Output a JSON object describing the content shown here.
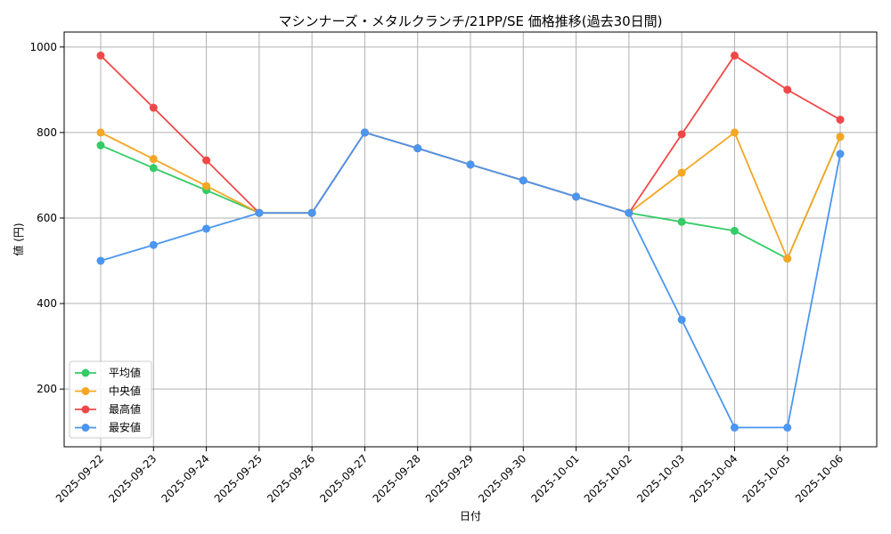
{
  "chart_data": {
    "type": "line",
    "title": "マシンナーズ・メタルクランチ/21PP/SE 価格推移(過去30日間)",
    "xlabel": "日付",
    "ylabel": "値 (円)",
    "categories": [
      "2025-09-22",
      "2025-09-23",
      "2025-09-24",
      "2025-09-25",
      "2025-09-26",
      "2025-09-27",
      "2025-09-28",
      "2025-09-29",
      "2025-09-30",
      "2025-10-01",
      "2025-10-02",
      "2025-10-03",
      "2025-10-04",
      "2025-10-05",
      "2025-10-06"
    ],
    "ylim": [
      65,
      1035
    ],
    "yticks": [
      200,
      400,
      600,
      800,
      1000
    ],
    "grid": true,
    "legend_position": "lower-left",
    "series": [
      {
        "name": "平均値",
        "color": "#33cc66",
        "values": [
          770,
          717,
          665,
          612,
          612,
          800,
          763,
          725,
          688,
          650,
          612,
          591,
          570,
          505,
          790
        ]
      },
      {
        "name": "中央値",
        "color": "#f5a623",
        "values": [
          800,
          738,
          675,
          612,
          612,
          800,
          763,
          725,
          688,
          650,
          612,
          706,
          800,
          505,
          790
        ]
      },
      {
        "name": "最高値",
        "color": "#f04848",
        "values": [
          980,
          858,
          735,
          612,
          612,
          800,
          763,
          725,
          688,
          650,
          612,
          796,
          980,
          900,
          830
        ]
      },
      {
        "name": "最安値",
        "color": "#4a96f0",
        "values": [
          500,
          537,
          575,
          612,
          612,
          800,
          763,
          725,
          688,
          650,
          612,
          362,
          110,
          110,
          750
        ]
      }
    ]
  }
}
